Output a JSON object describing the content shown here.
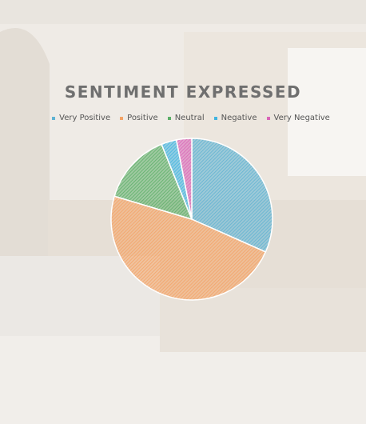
{
  "colors": {
    "very_positive": "#5fb3d3",
    "positive": "#f4a366",
    "neutral": "#5cae68",
    "negative": "#41b4e0",
    "very_negative": "#d965b8"
  },
  "chart_data": {
    "type": "pie",
    "title": "SENTIMENT EXPRESSED",
    "legend_position": "top",
    "categories": [
      "Very Positive",
      "Positive",
      "Neutral",
      "Negative",
      "Very Negative"
    ],
    "values": [
      31,
      47,
      14,
      3,
      3
    ],
    "colors": [
      "#5fb3d3",
      "#f4a366",
      "#5cae68",
      "#41b4e0",
      "#d965b8"
    ],
    "pattern": "diagonal-hatch"
  }
}
